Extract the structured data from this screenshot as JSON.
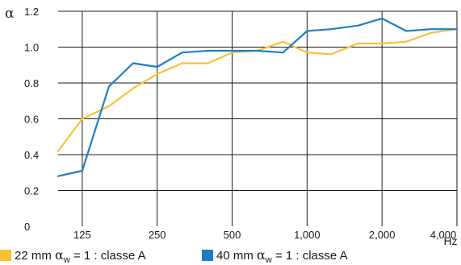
{
  "chart_data": {
    "type": "line",
    "ylabel": "α",
    "xunit": "Hz",
    "x": [
      100,
      125,
      160,
      200,
      250,
      315,
      400,
      500,
      630,
      800,
      1000,
      1250,
      1600,
      2000,
      2500,
      3150,
      4000
    ],
    "xticks": [
      {
        "value": 125,
        "label": "125"
      },
      {
        "value": 250,
        "label": "250"
      },
      {
        "value": 500,
        "label": "500"
      },
      {
        "value": 1000,
        "label": "1,000"
      },
      {
        "value": 2000,
        "label": "2,000"
      },
      {
        "value": 4000,
        "label": "4,000"
      }
    ],
    "yticks": [
      {
        "value": 0.0,
        "label": "0"
      },
      {
        "value": 0.2,
        "label": "0.2"
      },
      {
        "value": 0.4,
        "label": "0.4"
      },
      {
        "value": 0.6,
        "label": "0.6"
      },
      {
        "value": 0.8,
        "label": "0.8"
      },
      {
        "value": 1.0,
        "label": "1.0"
      },
      {
        "value": 1.2,
        "label": "1.2"
      }
    ],
    "xscale": "log",
    "xlim": [
      100,
      4000
    ],
    "ylim": [
      0,
      1.2
    ],
    "grid": true,
    "legend": "bottom",
    "series": [
      {
        "name": "22 mm",
        "legend": {
          "prefix": "22 mm ",
          "symbol": "α",
          "sub": "w",
          "suffix": " = 1 : classe A"
        },
        "color": "#f7c235",
        "values": [
          0.42,
          0.6,
          0.67,
          0.77,
          0.85,
          0.91,
          0.91,
          0.97,
          0.98,
          1.03,
          0.97,
          0.96,
          1.02,
          1.02,
          1.03,
          1.08,
          1.1
        ]
      },
      {
        "name": "40 mm",
        "legend": {
          "prefix": "40 mm ",
          "symbol": "α",
          "sub": "w",
          "suffix": " = 1 : classe A"
        },
        "color": "#1c7fc4",
        "values": [
          0.28,
          0.31,
          0.78,
          0.91,
          0.89,
          0.97,
          0.98,
          0.98,
          0.98,
          0.97,
          1.09,
          1.1,
          1.12,
          1.16,
          1.09,
          1.1,
          1.1
        ]
      }
    ]
  }
}
